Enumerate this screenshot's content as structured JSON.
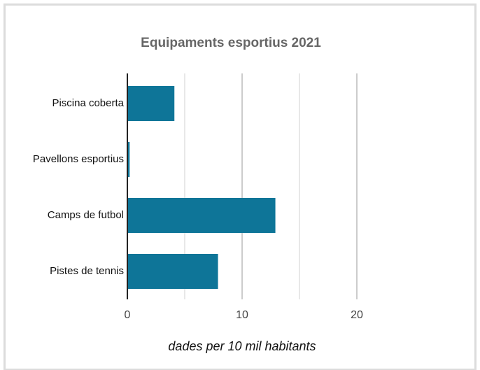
{
  "chart_data": {
    "type": "bar",
    "orientation": "horizontal",
    "title": "Equipaments esportius 2021",
    "x_label": "dades per 10 mil habitants",
    "categories": [
      "Piscina coberta",
      "Pavellons esportius",
      "Camps de futbol",
      "Pistes de tennis"
    ],
    "values": [
      4.1,
      0.2,
      12.9,
      7.9
    ],
    "color": "#0e7598",
    "xlim": [
      0,
      20
    ],
    "xticks": [
      0,
      10,
      20
    ],
    "minor_xticks": [
      5,
      15
    ],
    "grid": true
  }
}
